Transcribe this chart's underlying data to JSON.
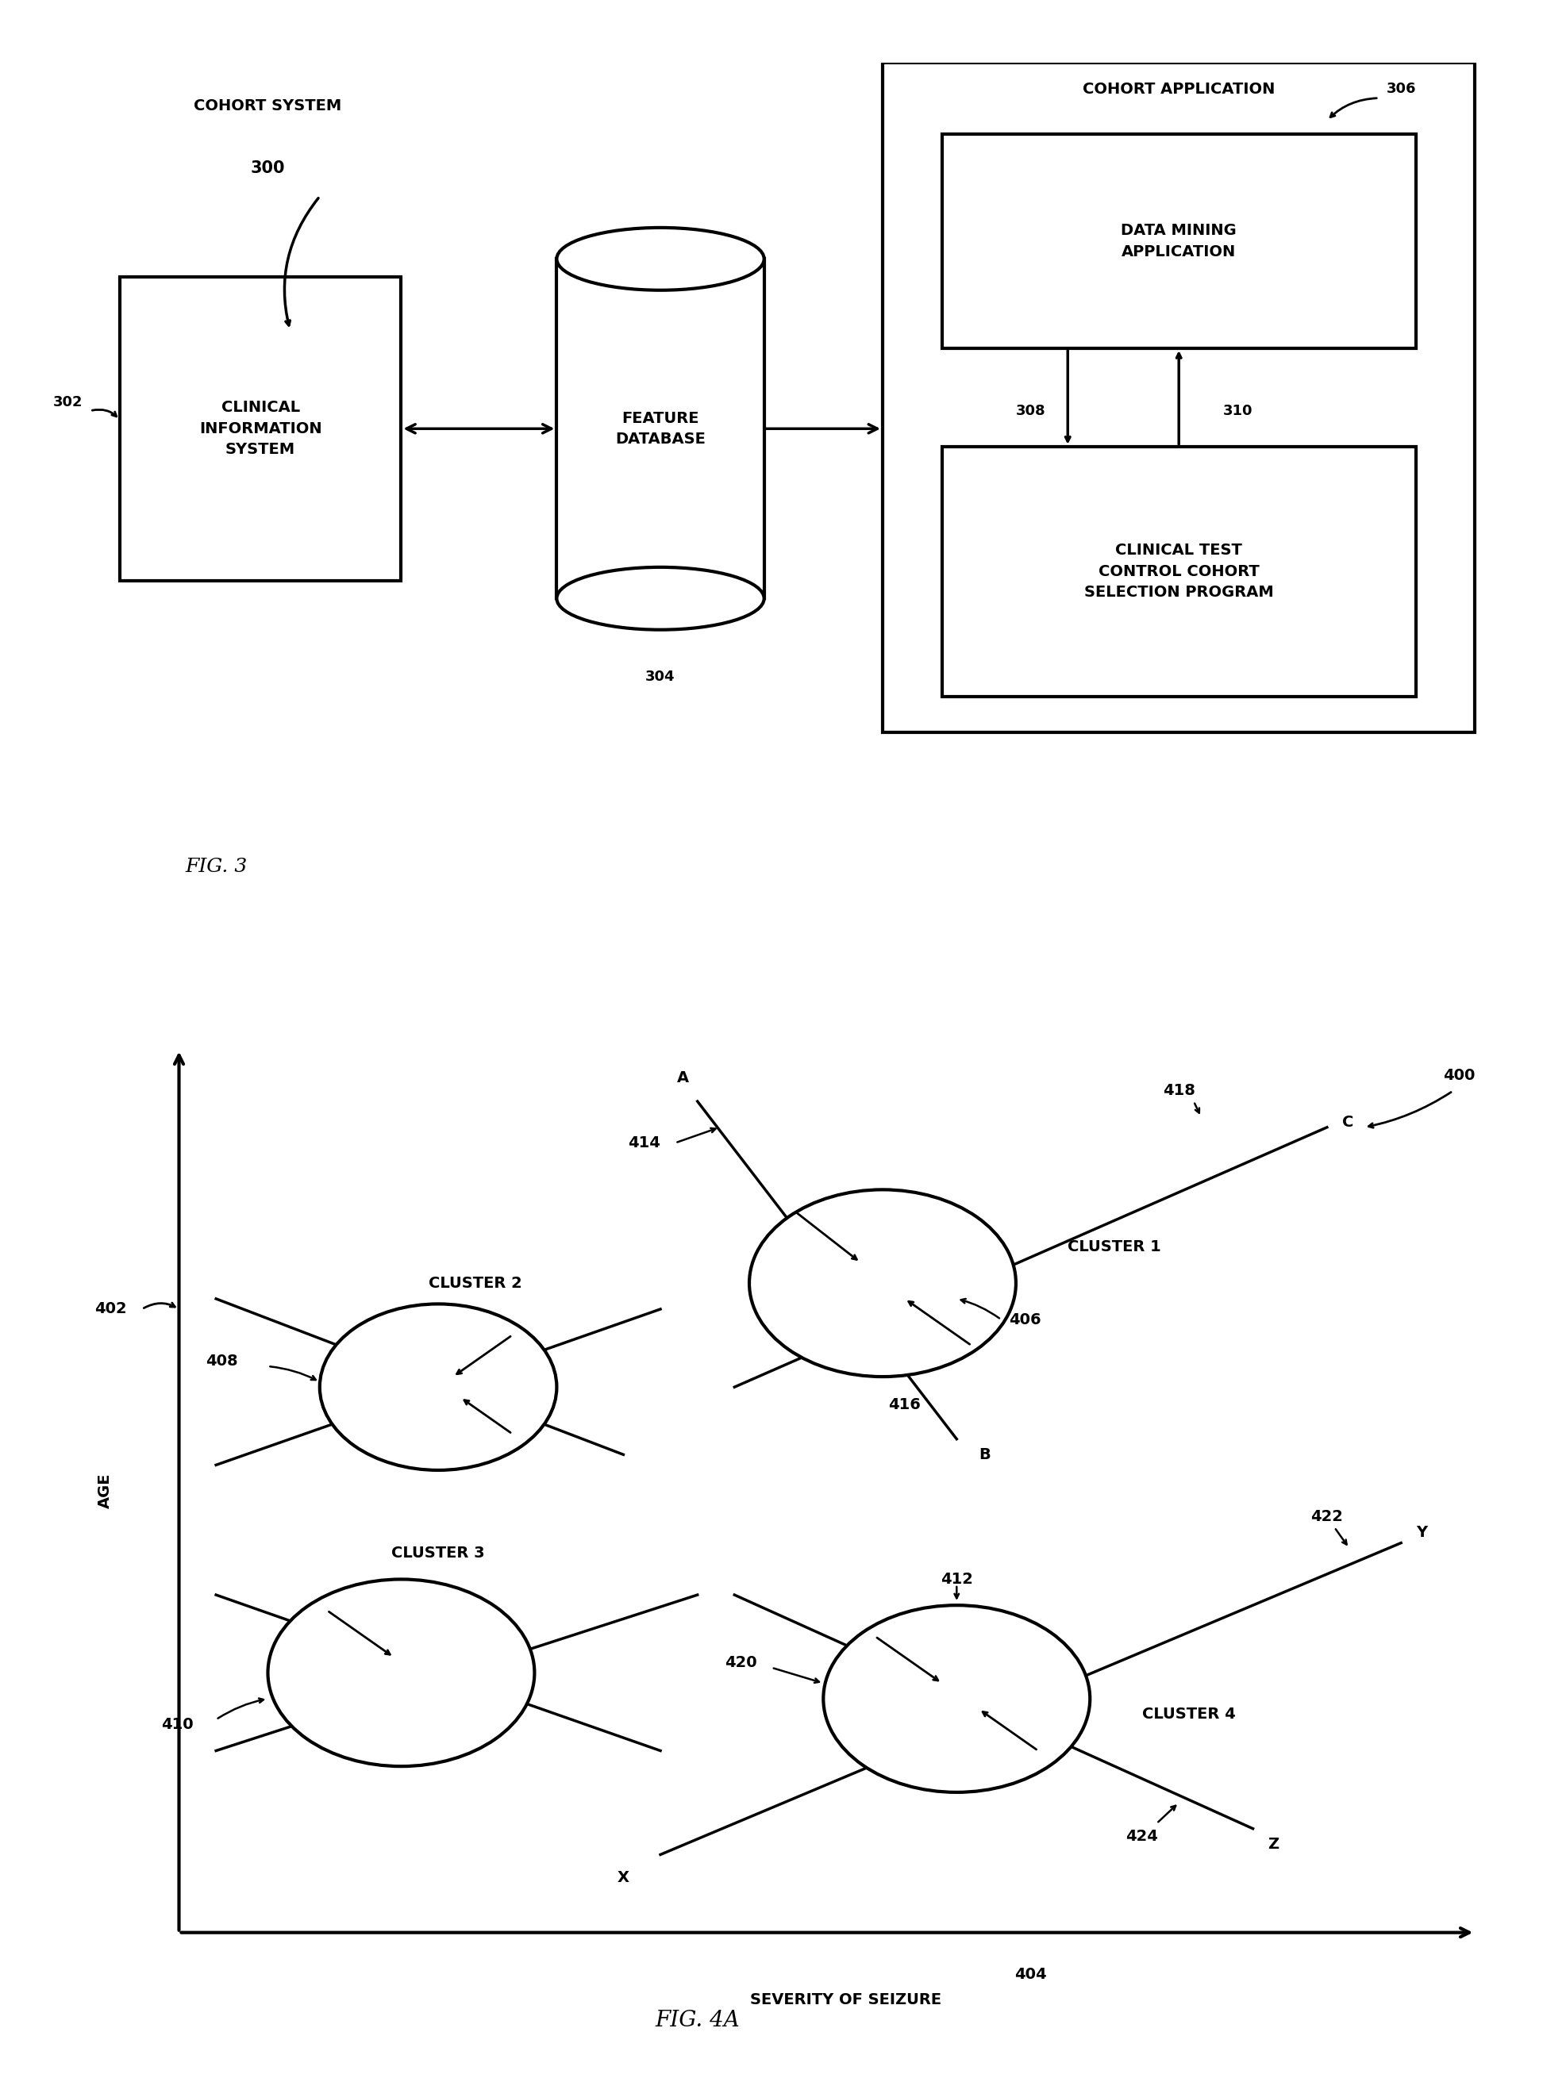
{
  "background_color": "#ffffff",
  "fig_width": 19.44,
  "fig_height": 26.19,
  "fig3": {
    "title": "FIG. 3",
    "label_cohort_system": "COHORT SYSTEM",
    "label_300": "300",
    "label_302": "302",
    "label_304": "304",
    "label_306": "306",
    "label_308": "308",
    "label_310": "310",
    "label_clinical": "CLINICAL\nINFORMATION\nSYSTEM",
    "label_feature_db": "FEATURE\nDATABASE",
    "label_cohort_app": "COHORT APPLICATION",
    "label_data_mining": "DATA MINING\nAPPLICATION",
    "label_clinical_test": "CLINICAL TEST\nCONTROL COHORT\nSELECTION PROGRAM"
  },
  "fig4a": {
    "title": "FIG. 4A",
    "label_400": "400",
    "label_402": "402",
    "label_404": "404",
    "label_406": "406",
    "label_408": "408",
    "label_410": "410",
    "label_412": "412",
    "label_414": "414",
    "label_416": "416",
    "label_418": "418",
    "label_420": "420",
    "label_422": "422",
    "label_424": "424",
    "label_age": "AGE",
    "label_severity": "SEVERITY OF SEIZURE",
    "label_cluster1": "CLUSTER 1",
    "label_cluster2": "CLUSTER 2",
    "label_cluster3": "CLUSTER 3",
    "label_cluster4": "CLUSTER 4",
    "label_A": "A",
    "label_B": "B",
    "label_C": "C",
    "label_X": "X",
    "label_Y": "Y",
    "label_Z": "Z"
  }
}
